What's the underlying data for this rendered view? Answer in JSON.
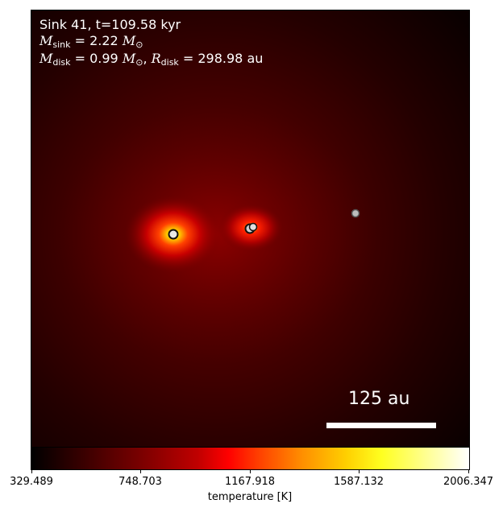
{
  "annotation": {
    "line1": "Sink 41, t=109.58 kyr",
    "msink_symbol": "M",
    "msink_sub": "sink",
    "msink_value": " = 2.22 ",
    "msink_unit": "M",
    "msink_unit_sub": "⊙",
    "mdisk_symbol": "M",
    "mdisk_sub": "disk",
    "mdisk_value": " = 0.99 ",
    "mdisk_unit": "M",
    "mdisk_unit_sub": "⊙",
    "sep": ", ",
    "rdisk_symbol": "R",
    "rdisk_sub": "disk",
    "rdisk_value": " = 298.98 au"
  },
  "scale_bar": {
    "label": "125 au"
  },
  "colorbar": {
    "label": "temperature [K]",
    "ticks": [
      "329.489",
      "748.703",
      "1167.918",
      "1587.132",
      "2006.347"
    ],
    "colormap": "hot"
  },
  "sinks": [
    {
      "name": "sink-left",
      "fill": "#e8e8e8",
      "stroke": "#111111"
    },
    {
      "name": "sink-center-a",
      "fill": "#cfcfcf",
      "stroke": "#111111"
    },
    {
      "name": "sink-center-b",
      "fill": "#e0e0e0",
      "stroke": "#111111"
    },
    {
      "name": "sink-right",
      "fill": "#bdbdbd",
      "stroke": "#555555"
    }
  ]
}
